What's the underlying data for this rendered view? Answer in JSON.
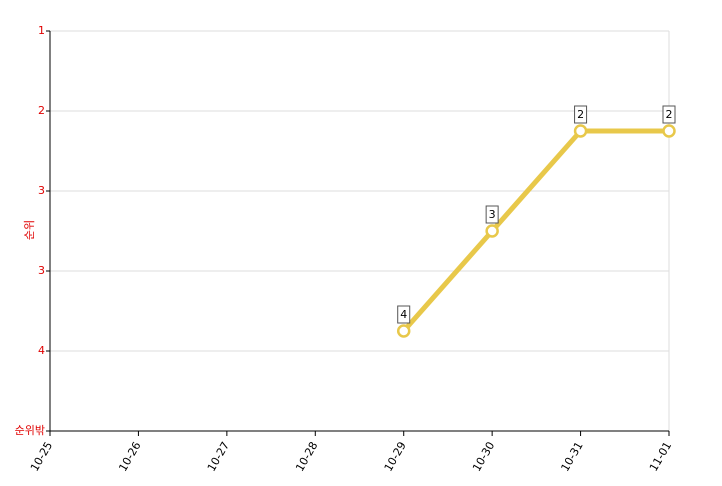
{
  "chart_data": {
    "type": "line",
    "y_label": "순위",
    "categories": [
      "10-25",
      "10-26",
      "10-27",
      "10-28",
      "10-29",
      "10-30",
      "10-31",
      "11-01"
    ],
    "series": [
      {
        "name": "순위",
        "color": "#e8c84a",
        "values": [
          null,
          null,
          null,
          null,
          4,
          3,
          2,
          2
        ]
      }
    ],
    "ylim": [
      1,
      5
    ],
    "y_inverted": true,
    "yticks": [
      1,
      {
        "value": 1.8,
        "label": "2"
      },
      {
        "value": 2.6,
        "label": "3"
      },
      {
        "value": 3.4,
        "label": "3"
      },
      {
        "value": 4.2,
        "label": "4"
      },
      {
        "value": 5,
        "label": "순위밖"
      }
    ],
    "grid": true,
    "tick_color": "#e00000"
  }
}
